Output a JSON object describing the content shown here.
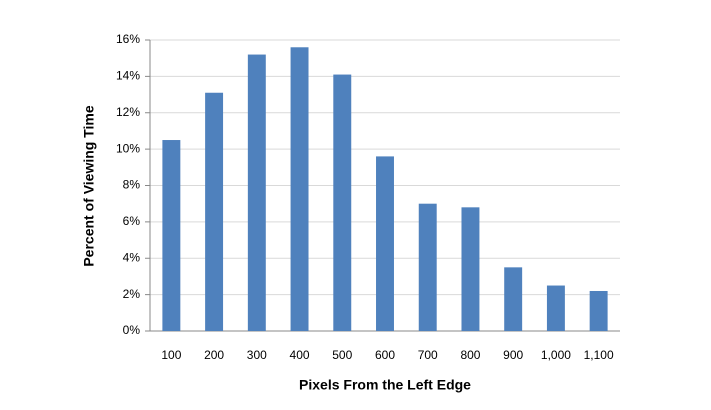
{
  "chart_data": {
    "type": "bar",
    "x_label": "Pixels From the Left Edge",
    "y_label": "Percent of Viewing Time",
    "categories": [
      "100",
      "200",
      "300",
      "400",
      "500",
      "600",
      "700",
      "800",
      "900",
      "1,000",
      "1,100"
    ],
    "values": [
      10.5,
      13.1,
      15.2,
      15.6,
      14.1,
      9.6,
      7.0,
      6.8,
      3.5,
      2.5,
      2.2
    ],
    "color": "#4f81bd",
    "ylim": [
      0,
      16
    ],
    "yticks": [
      {
        "value": 0,
        "label": "0%"
      },
      {
        "value": 2,
        "label": "2%"
      },
      {
        "value": 4,
        "label": "4%"
      },
      {
        "value": 6,
        "label": "6%"
      },
      {
        "value": 8,
        "label": "8%"
      },
      {
        "value": 10,
        "label": "10%"
      },
      {
        "value": 12,
        "label": "12%"
      },
      {
        "value": 14,
        "label": "14%"
      },
      {
        "value": 16,
        "label": "16%"
      }
    ],
    "grid": true
  }
}
